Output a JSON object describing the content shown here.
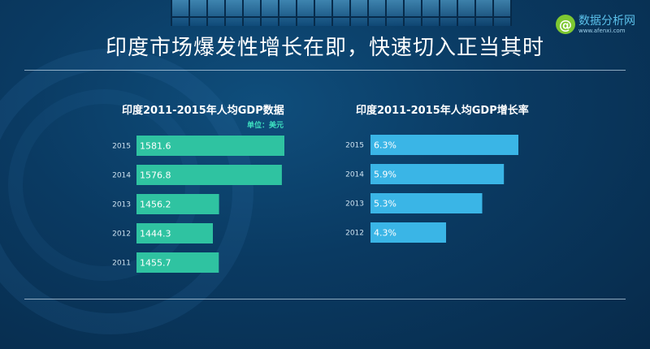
{
  "page": {
    "title": "印度市场爆发性增长在即，快速切入正当其时"
  },
  "logo": {
    "mark": "@",
    "name": "数据分析网",
    "url": "www.afenxi.com"
  },
  "chart_data": [
    {
      "type": "bar",
      "orientation": "horizontal",
      "title": "印度2011-2015年人均GDP数据",
      "unit": "单位：美元",
      "categories": [
        "2015",
        "2014",
        "2013",
        "2012",
        "2011"
      ],
      "values": [
        1581.6,
        1576.8,
        1456.2,
        1444.3,
        1455.7
      ],
      "labels": [
        "1581.6",
        "1576.8",
        "1456.2",
        "1444.3",
        "1455.7"
      ],
      "bar_color": "#2fc3a1"
    },
    {
      "type": "bar",
      "orientation": "horizontal",
      "title": "印度2011-2015年人均GDP增长率",
      "categories": [
        "2015",
        "2014",
        "2013",
        "2012"
      ],
      "values": [
        6.3,
        5.9,
        5.3,
        4.3
      ],
      "labels": [
        "6.3%",
        "5.9%",
        "5.3%",
        "4.3%"
      ],
      "bar_color": "#3ab5e6"
    }
  ]
}
